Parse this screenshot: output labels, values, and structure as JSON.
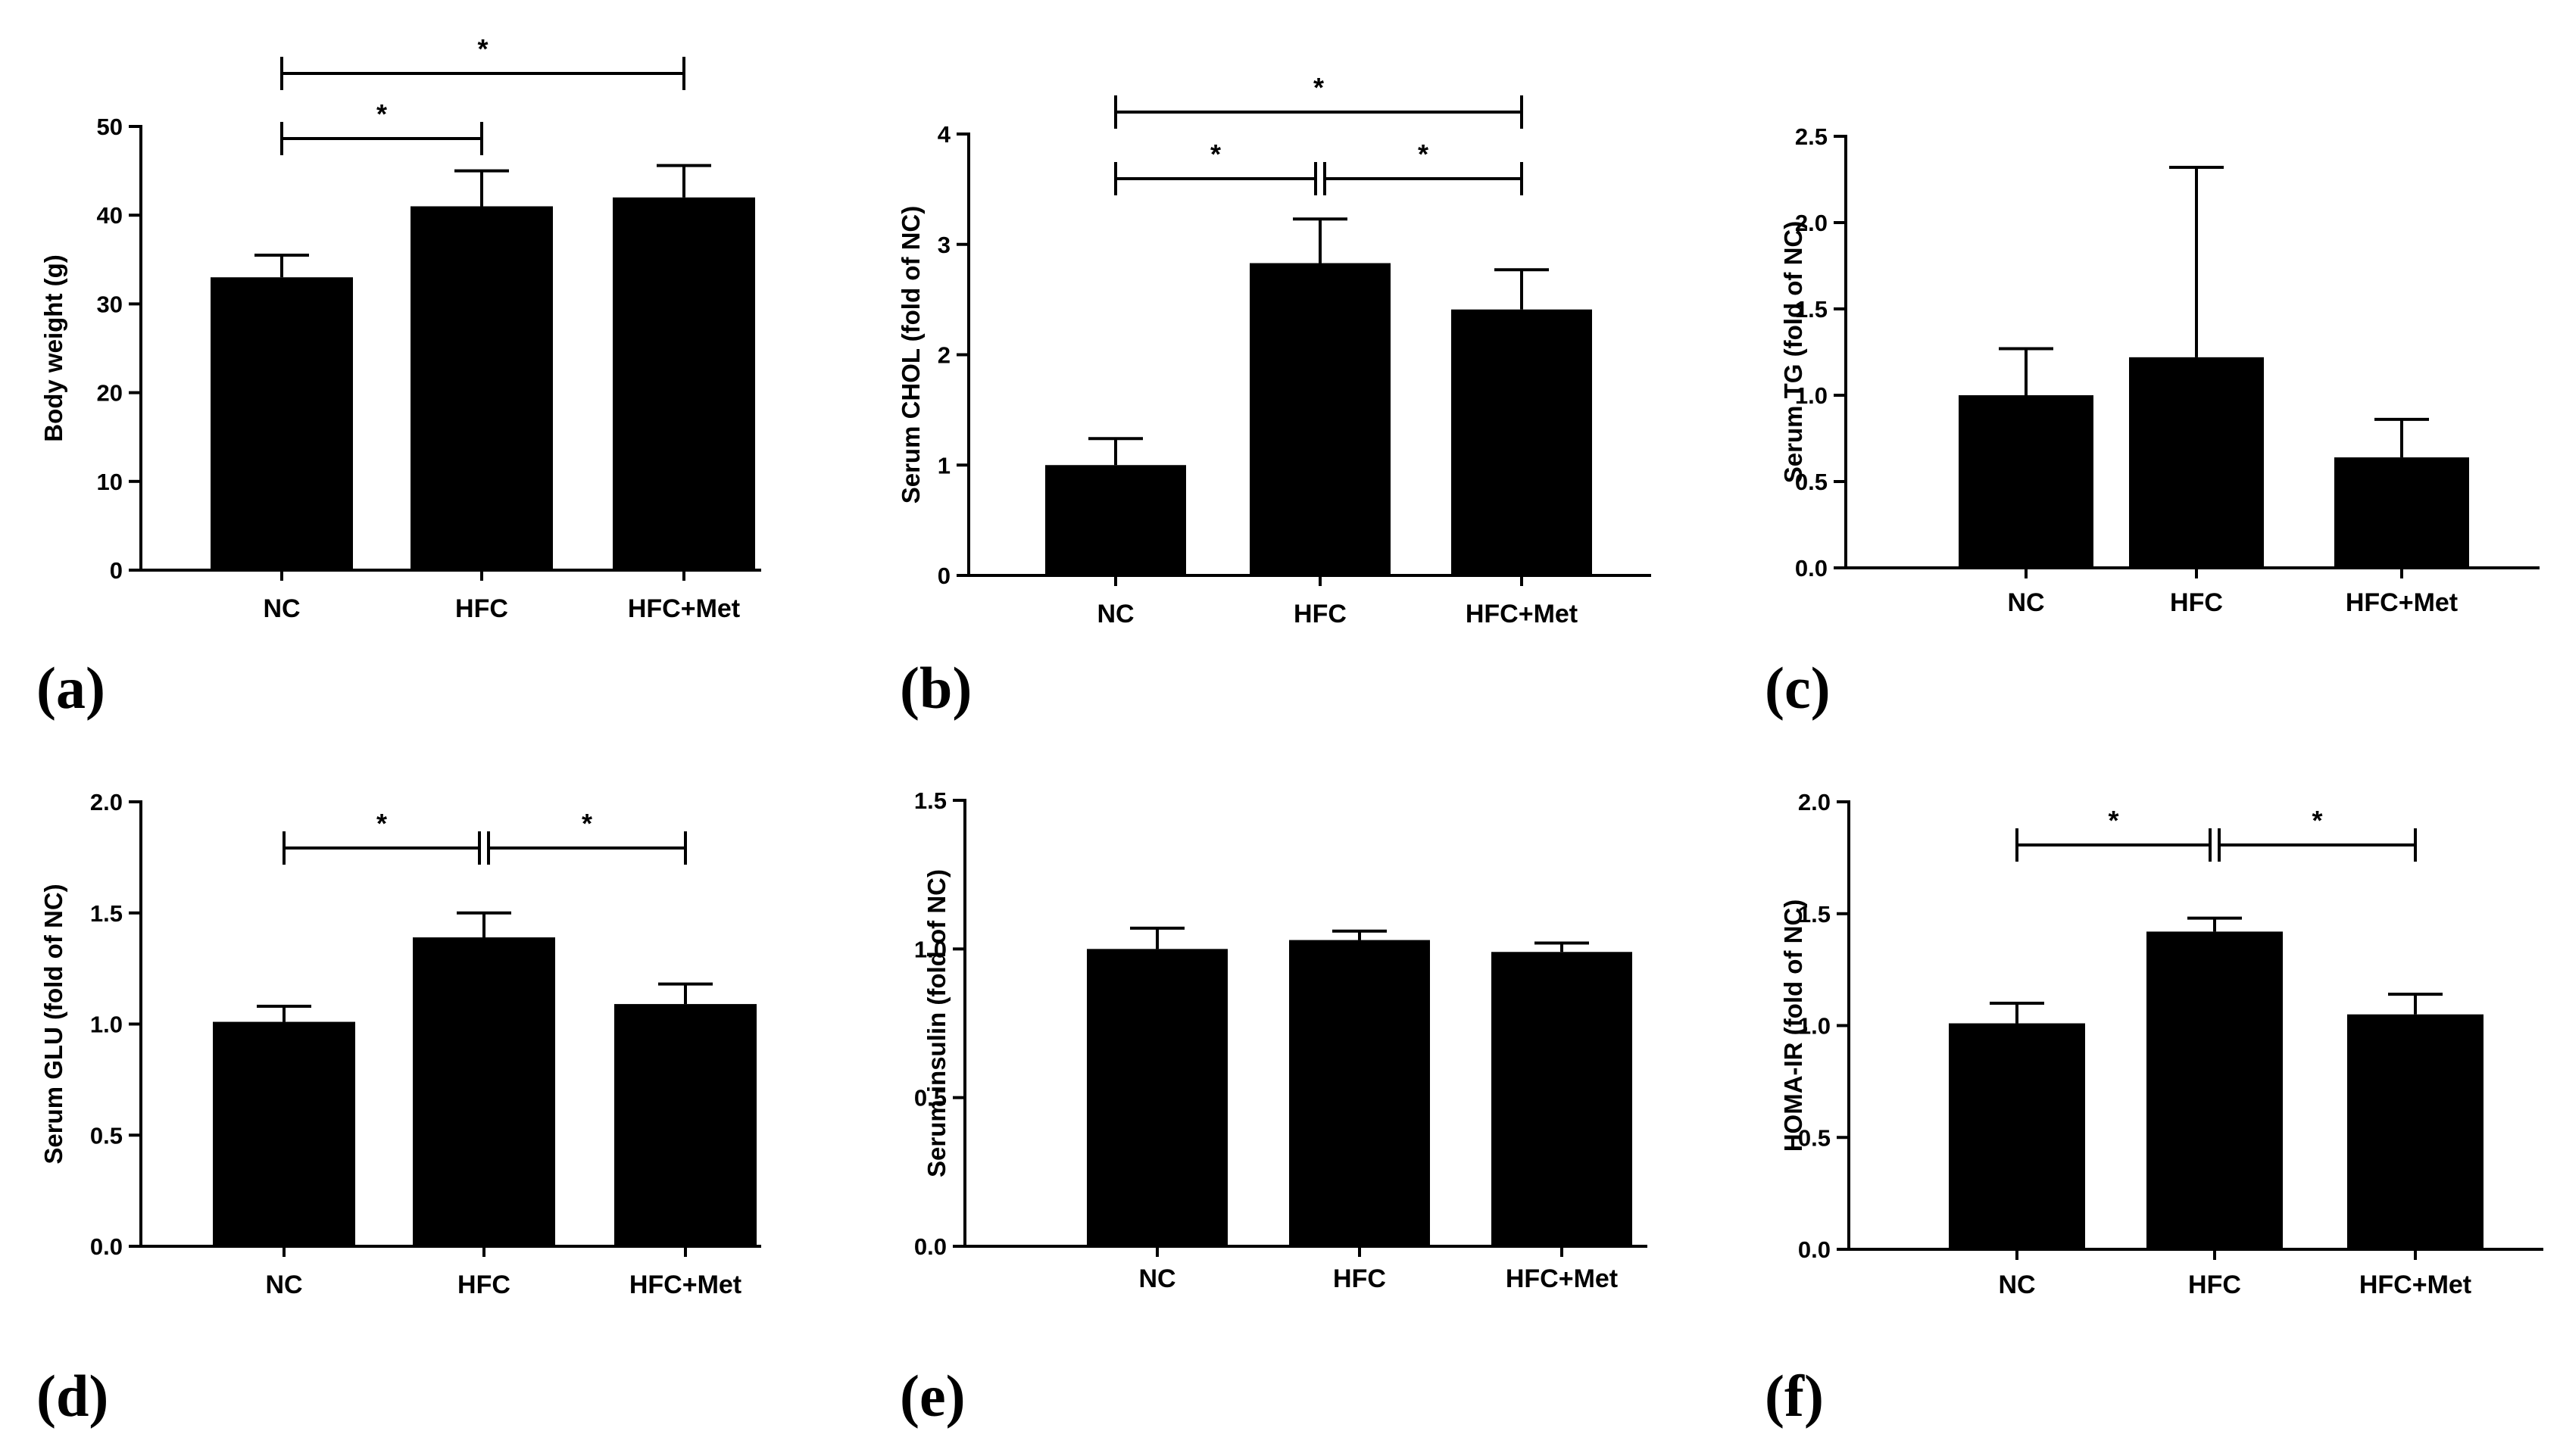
{
  "chart_data": [
    {
      "type": "bar",
      "panel": "(a)",
      "ylabel": "Body weight (g)",
      "ylim": [
        0,
        50
      ],
      "yticks": [
        "0",
        "10",
        "20",
        "30",
        "40",
        "50"
      ],
      "ytick_values": [
        0,
        10,
        20,
        30,
        40,
        50
      ],
      "categories": [
        "NC",
        "HFC",
        "HFC+Met"
      ],
      "values": [
        33,
        41,
        42
      ],
      "errors": [
        2.5,
        4,
        3.6
      ],
      "significance": [
        {
          "from": 0,
          "to": 1,
          "level": 1,
          "label": "*"
        },
        {
          "from": 0,
          "to": 2,
          "level": 2,
          "label": "*"
        }
      ]
    },
    {
      "type": "bar",
      "panel": "(b)",
      "ylabel": "Serum CHOL (fold of NC)",
      "ylim": [
        0,
        4
      ],
      "yticks": [
        "0",
        "1",
        "2",
        "3",
        "4"
      ],
      "ytick_values": [
        0,
        1,
        2,
        3,
        4
      ],
      "categories": [
        "NC",
        "HFC",
        "HFC+Met"
      ],
      "values": [
        1.0,
        2.83,
        2.41
      ],
      "errors": [
        0.24,
        0.4,
        0.36
      ],
      "significance": [
        {
          "from": 0,
          "to": 1,
          "level": 1,
          "label": "*"
        },
        {
          "from": 1,
          "to": 2,
          "level": 1,
          "label": "*"
        },
        {
          "from": 0,
          "to": 2,
          "level": 2,
          "label": "*"
        }
      ]
    },
    {
      "type": "bar",
      "panel": "(c)",
      "ylabel": "Serum TG (fold of NC)",
      "ylim": [
        0,
        2.5
      ],
      "yticks": [
        "0.0",
        "0.5",
        "1.0",
        "1.5",
        "2.0",
        "2.5"
      ],
      "ytick_values": [
        0,
        0.5,
        1.0,
        1.5,
        2.0,
        2.5
      ],
      "categories": [
        "NC",
        "HFC",
        "HFC+Met"
      ],
      "values": [
        1.0,
        1.22,
        0.64
      ],
      "errors": [
        0.27,
        1.1,
        0.22
      ],
      "significance": []
    },
    {
      "type": "bar",
      "panel": "(d)",
      "ylabel": "Serum GLU (fold of NC)",
      "ylim": [
        0,
        2.0
      ],
      "yticks": [
        "0.0",
        "0.5",
        "1.0",
        "1.5",
        "2.0"
      ],
      "ytick_values": [
        0,
        0.5,
        1.0,
        1.5,
        2.0
      ],
      "categories": [
        "NC",
        "HFC",
        "HFC+Met"
      ],
      "values": [
        1.01,
        1.39,
        1.09
      ],
      "errors": [
        0.07,
        0.11,
        0.09
      ],
      "significance": [
        {
          "from": 0,
          "to": 1,
          "level": 1,
          "label": "*"
        },
        {
          "from": 1,
          "to": 2,
          "level": 1,
          "label": "*"
        }
      ]
    },
    {
      "type": "bar",
      "panel": "(e)",
      "ylabel": "Serum insulin (fold of NC)",
      "ylim": [
        0,
        1.5
      ],
      "yticks": [
        "0.0",
        "0.5",
        "1.0",
        "1.5"
      ],
      "ytick_values": [
        0,
        0.5,
        1.0,
        1.5
      ],
      "categories": [
        "NC",
        "HFC",
        "HFC+Met"
      ],
      "values": [
        1.0,
        1.03,
        0.99
      ],
      "errors": [
        0.07,
        0.03,
        0.03
      ],
      "significance": []
    },
    {
      "type": "bar",
      "panel": "(f)",
      "ylabel": "HOMA-IR (fold of NC)",
      "ylim": [
        0,
        2.0
      ],
      "yticks": [
        "0.0",
        "0.5",
        "1.0",
        "1.5",
        "2.0"
      ],
      "ytick_values": [
        0,
        0.5,
        1.0,
        1.5,
        2.0
      ],
      "categories": [
        "NC",
        "HFC",
        "HFC+Met"
      ],
      "values": [
        1.01,
        1.42,
        1.05
      ],
      "errors": [
        0.09,
        0.06,
        0.09
      ],
      "significance": [
        {
          "from": 0,
          "to": 1,
          "level": 1,
          "label": "*"
        },
        {
          "from": 1,
          "to": 2,
          "level": 1,
          "label": "*"
        }
      ]
    }
  ]
}
